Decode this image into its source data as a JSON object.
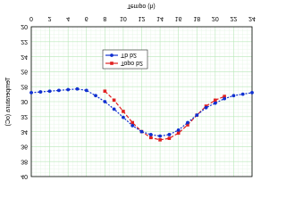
{
  "chart_data": {
    "type": "line",
    "xlabel": "Tempo (h)",
    "ylabel": "Temperatura (oC)",
    "xlim": [
      0,
      24
    ],
    "xticks": [
      0,
      2,
      4,
      6,
      8,
      10,
      12,
      14,
      16,
      18,
      20,
      22,
      24
    ],
    "ylim": [
      20,
      40
    ],
    "yticks": [
      20,
      22,
      24,
      26,
      28,
      30,
      32,
      34,
      36,
      38,
      40
    ],
    "grid": true,
    "legend": "bottom",
    "series": [
      {
        "name": "Topo b2",
        "color": "#e02020",
        "x": [
          8,
          9,
          10,
          11,
          12,
          13,
          14,
          15,
          16,
          17,
          18,
          19,
          20,
          21
        ],
        "values": [
          28.6,
          29.8,
          31.3,
          32.8,
          34,
          34.8,
          35.1,
          34.9,
          34.2,
          33.1,
          31.8,
          30.6,
          29.8,
          29.3
        ]
      },
      {
        "name": "Tb b2",
        "color": "#1030d0",
        "x": [
          0,
          1,
          2,
          3,
          4,
          5,
          6,
          7,
          8,
          9,
          10,
          11,
          12,
          13,
          14,
          15,
          16,
          17,
          18,
          19,
          20,
          21,
          22,
          23,
          24
        ],
        "values": [
          28.8,
          28.7,
          28.6,
          28.5,
          28.4,
          28.3,
          28.5,
          29.2,
          30,
          31,
          32.1,
          33.2,
          34,
          34.4,
          34.6,
          34.4,
          33.8,
          32.8,
          31.8,
          30.8,
          30.2,
          29.6,
          29.2,
          29,
          28.8
        ]
      }
    ]
  }
}
